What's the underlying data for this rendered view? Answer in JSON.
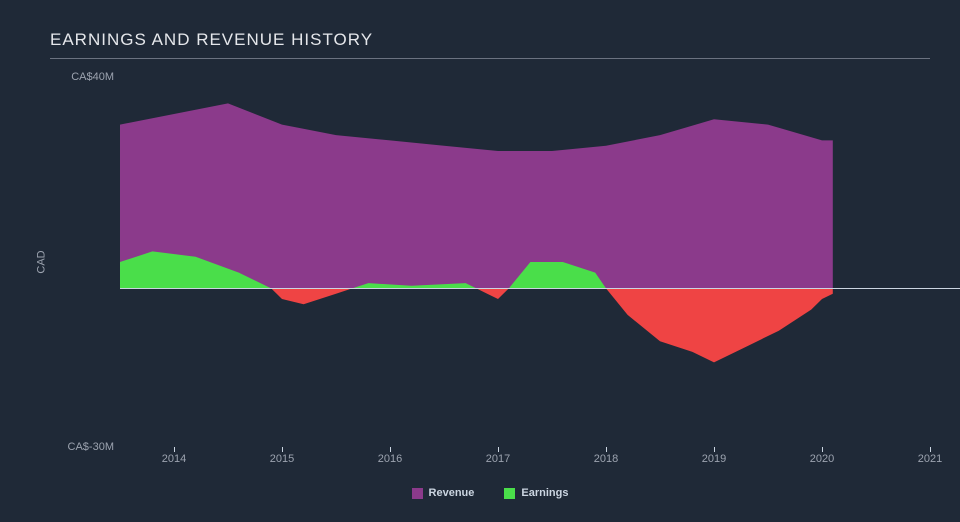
{
  "chart": {
    "type": "area",
    "title": "EARNINGS AND REVENUE HISTORY",
    "title_fontsize": 17,
    "title_color": "#e5e7eb",
    "background_color": "#1f2937",
    "rule_color": "#6b7280",
    "y_axis": {
      "label": "CAD",
      "ticks": [
        {
          "value": 40,
          "label": "CA$40M"
        },
        {
          "value": -30,
          "label": "CA$-30M"
        }
      ],
      "min": -30,
      "max": 40,
      "label_fontsize": 11,
      "label_color": "#9ca3af"
    },
    "x_axis": {
      "min": 2013.5,
      "max": 2021,
      "ticks": [
        2014,
        2015,
        2016,
        2017,
        2018,
        2019,
        2020,
        2021
      ],
      "label_fontsize": 11,
      "label_color": "#9ca3af"
    },
    "zero_line_color": "#cbd5e1",
    "series": [
      {
        "name": "Revenue",
        "color": "#8b3a8b",
        "data": [
          {
            "x": 2013.5,
            "y": 31
          },
          {
            "x": 2014.0,
            "y": 33
          },
          {
            "x": 2014.5,
            "y": 35
          },
          {
            "x": 2015.0,
            "y": 31
          },
          {
            "x": 2015.5,
            "y": 29
          },
          {
            "x": 2016.0,
            "y": 28
          },
          {
            "x": 2016.5,
            "y": 27
          },
          {
            "x": 2017.0,
            "y": 26
          },
          {
            "x": 2017.5,
            "y": 26
          },
          {
            "x": 2018.0,
            "y": 27
          },
          {
            "x": 2018.5,
            "y": 29
          },
          {
            "x": 2019.0,
            "y": 32
          },
          {
            "x": 2019.5,
            "y": 31
          },
          {
            "x": 2020.0,
            "y": 28
          },
          {
            "x": 2020.1,
            "y": 28
          }
        ]
      },
      {
        "name": "Earnings",
        "color_positive": "#4ade4a",
        "color_negative": "#ef4444",
        "data": [
          {
            "x": 2013.5,
            "y": 5
          },
          {
            "x": 2013.8,
            "y": 7
          },
          {
            "x": 2014.2,
            "y": 6
          },
          {
            "x": 2014.6,
            "y": 3
          },
          {
            "x": 2014.9,
            "y": 0
          },
          {
            "x": 2015.0,
            "y": -2
          },
          {
            "x": 2015.2,
            "y": -3
          },
          {
            "x": 2015.5,
            "y": -1
          },
          {
            "x": 2015.8,
            "y": 1
          },
          {
            "x": 2016.2,
            "y": 0.5
          },
          {
            "x": 2016.7,
            "y": 1
          },
          {
            "x": 2016.9,
            "y": -1
          },
          {
            "x": 2017.0,
            "y": -2
          },
          {
            "x": 2017.1,
            "y": 0
          },
          {
            "x": 2017.3,
            "y": 5
          },
          {
            "x": 2017.6,
            "y": 5
          },
          {
            "x": 2017.9,
            "y": 3
          },
          {
            "x": 2018.0,
            "y": 0
          },
          {
            "x": 2018.2,
            "y": -5
          },
          {
            "x": 2018.5,
            "y": -10
          },
          {
            "x": 2018.8,
            "y": -12
          },
          {
            "x": 2019.0,
            "y": -14
          },
          {
            "x": 2019.3,
            "y": -11
          },
          {
            "x": 2019.6,
            "y": -8
          },
          {
            "x": 2019.9,
            "y": -4
          },
          {
            "x": 2020.0,
            "y": -2
          },
          {
            "x": 2020.1,
            "y": -1
          }
        ]
      }
    ],
    "legend": {
      "items": [
        {
          "label": "Revenue",
          "color": "#8b3a8b"
        },
        {
          "label": "Earnings",
          "color": "#4ade4a"
        }
      ],
      "fontsize": 11,
      "text_color": "#cbd5e1"
    }
  }
}
